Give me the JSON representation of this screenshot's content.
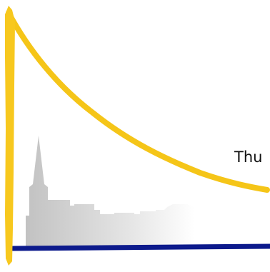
{
  "label": "Thu",
  "colors": {
    "curve": "#f5c518",
    "vertical_bar": "#f7c81e",
    "baseline": "#0c1a8c",
    "skyline_dark": "#c2c2c2",
    "skyline_light": "#ffffff"
  },
  "icons": {
    "skyline": "city-skyline-silhouette-icon"
  }
}
